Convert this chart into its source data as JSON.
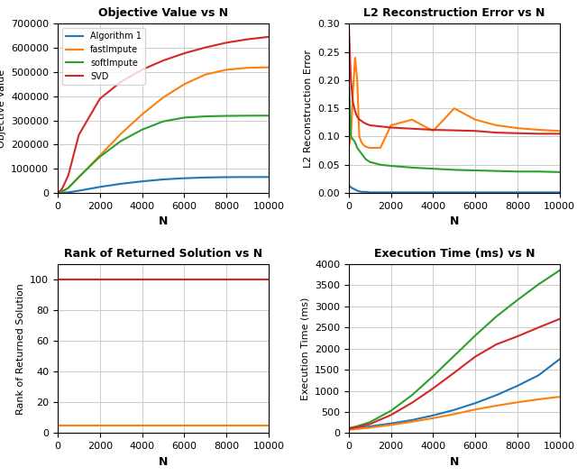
{
  "N": [
    0,
    200,
    500,
    1000,
    2000,
    3000,
    4000,
    5000,
    6000,
    7000,
    8000,
    9000,
    10000
  ],
  "colors": {
    "alg1": "#1f77b4",
    "fastImpute": "#ff7f0e",
    "softImpute": "#2ca02c",
    "SVD": "#d62728"
  },
  "labels": [
    "Algorithm 1",
    "fastImpute",
    "softImpute",
    "SVD"
  ],
  "titles": [
    "Objective Value vs N",
    "L2 Reconstruction Error vs N",
    "Rank of Returned Solution vs N",
    "Execution Time (ms) vs N"
  ],
  "xlabels": [
    "N",
    "N",
    "N",
    "N"
  ],
  "ylabels": [
    "Objective Value",
    "L2 Reconstruction Error",
    "Rank of Returned Solution",
    "Execution Time (ms)"
  ],
  "obj_alg1": [
    0,
    600,
    2600,
    9200,
    25000,
    38000,
    48000,
    56000,
    61000,
    64000,
    65500,
    65900,
    66000
  ],
  "obj_fastImpute": [
    0,
    5000,
    20000,
    65000,
    155000,
    245000,
    325000,
    395000,
    450000,
    490000,
    510000,
    518000,
    520000
  ],
  "obj_softImpute": [
    0,
    6000,
    21000,
    66000,
    150000,
    215000,
    262000,
    296000,
    312000,
    317000,
    319000,
    319800,
    320000
  ],
  "obj_SVD": [
    0,
    16000,
    72000,
    240000,
    390000,
    460000,
    510000,
    548000,
    578000,
    602000,
    622000,
    636000,
    646000
  ],
  "l2_N": [
    0,
    100,
    200,
    300,
    400,
    500,
    600,
    700,
    800,
    1000,
    1500,
    2000,
    3000,
    4000,
    5000,
    6000,
    7000,
    8000,
    9000,
    10000
  ],
  "l2_alg1": [
    0.014,
    0.01,
    0.008,
    0.006,
    0.004,
    0.003,
    0.002,
    0.002,
    0.002,
    0.001,
    0.001,
    0.001,
    0.001,
    0.001,
    0.001,
    0.001,
    0.001,
    0.001,
    0.001,
    0.001
  ],
  "l2_fastImpute": [
    0.08,
    0.1,
    0.18,
    0.24,
    0.2,
    0.1,
    0.09,
    0.085,
    0.082,
    0.08,
    0.08,
    0.12,
    0.13,
    0.11,
    0.15,
    0.13,
    0.12,
    0.115,
    0.112,
    0.11
  ],
  "l2_softImpute": [
    0.21,
    0.1,
    0.095,
    0.09,
    0.08,
    0.075,
    0.07,
    0.065,
    0.06,
    0.055,
    0.05,
    0.048,
    0.045,
    0.043,
    0.041,
    0.04,
    0.039,
    0.038,
    0.038,
    0.037
  ],
  "l2_SVD": [
    0.3,
    0.2,
    0.16,
    0.145,
    0.135,
    0.13,
    0.128,
    0.125,
    0.123,
    0.12,
    0.118,
    0.116,
    0.114,
    0.112,
    0.111,
    0.11,
    0.107,
    0.106,
    0.105,
    0.105
  ],
  "rank_SVD": 100,
  "rank_fastImpute": 5,
  "time_alg1": [
    100,
    110,
    130,
    160,
    230,
    310,
    420,
    550,
    710,
    900,
    1120,
    1370,
    1750
  ],
  "time_fastImpute": [
    80,
    90,
    105,
    130,
    195,
    270,
    355,
    450,
    560,
    650,
    730,
    800,
    860
  ],
  "time_softImpute": [
    120,
    140,
    180,
    260,
    530,
    900,
    1350,
    1830,
    2310,
    2760,
    3150,
    3520,
    3850
  ],
  "time_SVD": [
    110,
    125,
    155,
    215,
    430,
    720,
    1060,
    1430,
    1810,
    2100,
    2290,
    2500,
    2700
  ]
}
